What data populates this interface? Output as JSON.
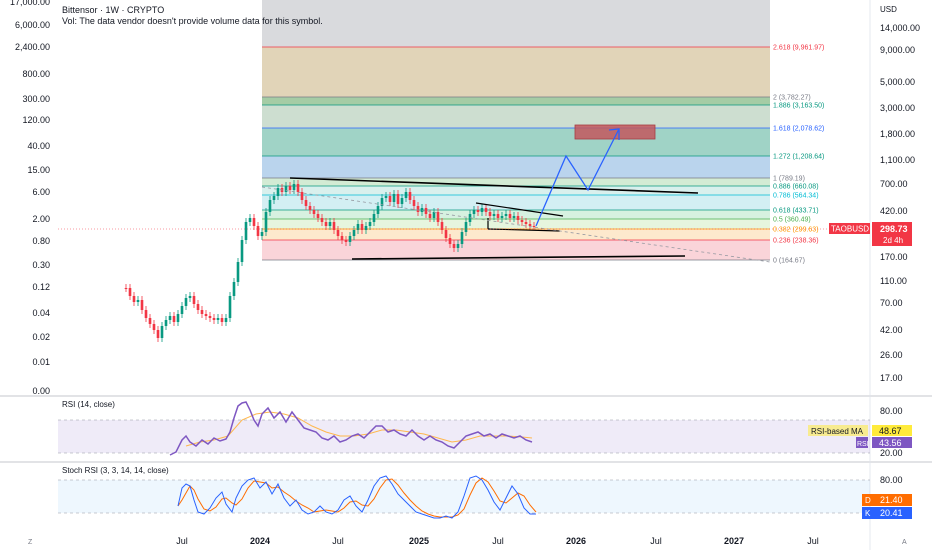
{
  "header": {
    "title": "Bittensor · 1W · CRYPTO",
    "volume_note": "Vol: The data vendor doesn't provide volume data for this symbol."
  },
  "currency": "USD",
  "left_axis_labels": [
    "17,000.00",
    "6,000.00",
    "2,400.00",
    "800.00",
    "300.00",
    "120.00",
    "40.00",
    "15.00",
    "6.00",
    "2.00",
    "0.80",
    "0.30",
    "0.12",
    "0.04",
    "0.02",
    "0.01",
    "0.00"
  ],
  "right_axis_labels": [
    "14,000.00",
    "9,000.00",
    "5,000.00",
    "3,000.00",
    "1,800.00",
    "1,100.00",
    "700.00",
    "420.00",
    "170.00",
    "110.00",
    "70.00",
    "42.00",
    "26.00",
    "17.00"
  ],
  "price_tag": {
    "symbol": "TAOBUSD",
    "price": "298.73",
    "countdown": "2d 4h"
  },
  "x_axis_labels": [
    "Jul",
    "2024",
    "Jul",
    "2025",
    "Jul",
    "2026",
    "Jul",
    "2027",
    "Jul"
  ],
  "fib_levels": [
    {
      "label": "2.618 (9,961.97)",
      "color": "#f23645"
    },
    {
      "label": "2 (3,782.27)",
      "color": "#787b86"
    },
    {
      "label": "1.886 (3,163.50)",
      "color": "#089981"
    },
    {
      "label": "1.618 (2,078.62)",
      "color": "#2962ff"
    },
    {
      "label": "1.272 (1,208.64)",
      "color": "#089981"
    },
    {
      "label": "1 (789.19)",
      "color": "#787b86"
    },
    {
      "label": "0.886 (660.08)",
      "color": "#089981"
    },
    {
      "label": "0.786 (564.34)",
      "color": "#00bcd4"
    },
    {
      "label": "0.618 (433.71)",
      "color": "#089981"
    },
    {
      "label": "0.5 (360.49)",
      "color": "#4caf50"
    },
    {
      "label": "0.382 (299.63)",
      "color": "#ff9800"
    },
    {
      "label": "0.236 (238.36)",
      "color": "#f23645"
    },
    {
      "label": "0 (164.67)",
      "color": "#787b86"
    }
  ],
  "rsi": {
    "title": "RSI (14, close)",
    "axis_labels": [
      "80.00",
      "20.00"
    ],
    "ma_label": "RSI-based MA",
    "ma_value": "48.67",
    "rsi_label": "RSI",
    "rsi_value": "43.56",
    "line_color": "#7e57c2",
    "ma_color": "#ffb74d"
  },
  "stoch": {
    "title": "Stoch RSI (3, 3, 14, 14, close)",
    "axis_labels": [
      "80.00",
      "20.00"
    ],
    "d_label": "D",
    "d_value": "21.40",
    "k_label": "K",
    "k_value": "20.41",
    "k_color": "#2962ff",
    "d_color": "#ff6d00"
  }
}
